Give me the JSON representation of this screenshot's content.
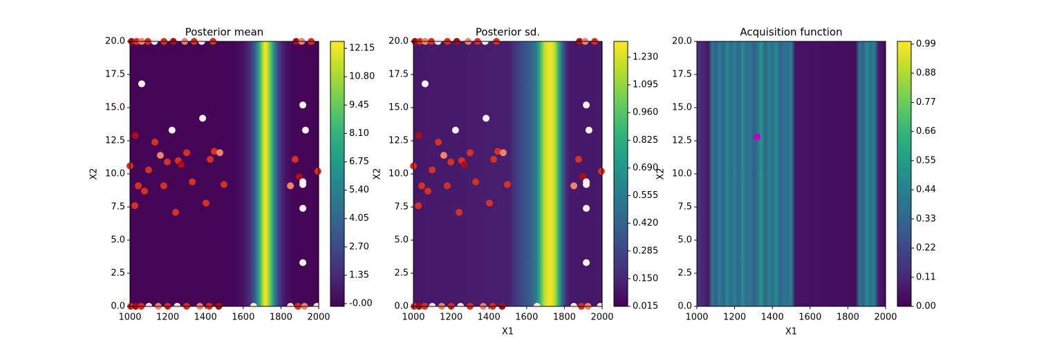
{
  "chart_data": [
    {
      "type": "heatmap",
      "title": "Posterior mean",
      "ylabel": "X2",
      "colormap": "viridis",
      "xlim": [
        1000,
        2000
      ],
      "ylim": [
        0,
        20
      ],
      "xticks": [
        1000,
        1200,
        1400,
        1600,
        1800,
        2000
      ],
      "yticks": [
        {
          "value": 0,
          "label": "0.0"
        },
        2.5,
        {
          "value": 5,
          "label": "5.0"
        },
        7.5,
        {
          "value": 10,
          "label": "10.0"
        },
        12.5,
        {
          "value": 15,
          "label": "15.0"
        },
        17.5,
        {
          "value": 20,
          "label": "20.0"
        }
      ],
      "x": [
        1000,
        1500,
        1560,
        1600,
        1630,
        1650,
        1670,
        1690,
        1705,
        1715,
        1725,
        1740,
        1760,
        1780,
        1800,
        1830,
        1870,
        2000
      ],
      "values": [
        0,
        0,
        0.1,
        0.5,
        1.3,
        2.6,
        5,
        8.5,
        11.3,
        12.4,
        11.8,
        9.8,
        6.4,
        3.2,
        1.3,
        0.4,
        0,
        0
      ],
      "clim": [
        -0.13,
        12.48
      ],
      "cticks": [
        {
          "value": 0,
          "label": "-0.00"
        },
        1.35,
        {
          "value": 2.7,
          "label": "2.70"
        },
        4.05,
        {
          "value": 5.4,
          "label": "5.40"
        },
        6.75,
        {
          "value": 8.1,
          "label": "8.10"
        },
        9.45,
        {
          "value": 10.8,
          "label": "10.80"
        },
        12.15
      ],
      "points": {
        "x": [
          1000,
          1029,
          1026,
          1044,
          1062,
          1077,
          1099,
          1132,
          1161,
          1179,
          1198,
          1223,
          1242,
          1256,
          1271,
          1300,
          1330,
          1385,
          1403,
          1425,
          1447,
          1476,
          1498,
          1850,
          1875,
          1897,
          1916,
          1916,
          1916,
          1916,
          1916,
          1930,
          1996,
          1008,
          1035,
          1062,
          1095,
          1130,
          1180,
          1230,
          1290,
          1340,
          1380,
          1440,
          1880,
          1910,
          1960,
          1004,
          1030,
          1060,
          1100,
          1150,
          1200,
          1250,
          1300,
          1370,
          1420,
          1470,
          1655,
          1850,
          1890,
          1925,
          1990
        ],
        "y": [
          10.6,
          12.9,
          7.6,
          9.1,
          16.8,
          8.7,
          10.3,
          12.4,
          11.4,
          9.1,
          10.9,
          13.3,
          7.1,
          11,
          10.7,
          11.6,
          9.4,
          14.2,
          7.8,
          11.1,
          11.7,
          11.6,
          9.2,
          9.1,
          11.1,
          9.8,
          15.2,
          9.4,
          9.2,
          7.4,
          3.3,
          13.3,
          10.2,
          20,
          20,
          20,
          20,
          20,
          20,
          20,
          20,
          20,
          20,
          20,
          20,
          20,
          20,
          0,
          0,
          0,
          0,
          0,
          0,
          0,
          0,
          0,
          0,
          0,
          0,
          0,
          0,
          0,
          0
        ],
        "colors": [
          "#d7301f",
          "#a50f15",
          "#d7301f",
          "#d7301f",
          "#fff0ec",
          "#d7301f",
          "#d7301f",
          "#d7301f",
          "#f4826a",
          "#d7301f",
          "#d7301f",
          "#fff0ec",
          "#d7301f",
          "#d7301f",
          "#a50f15",
          "#d7301f",
          "#d7301f",
          "#fff0ec",
          "#d7301f",
          "#d7301f",
          "#d7301f",
          "#f4826a",
          "#d7301f",
          "#f4826a",
          "#d7301f",
          "#a50f15",
          "#fff0ec",
          "#fff0ec",
          "#fff0ec",
          "#fff0ec",
          "#fff0ec",
          "#fff0ec",
          "#d7301f",
          "#a50f15",
          "#d7301f",
          "#f4826a",
          "#d7301f",
          "#fff0ec",
          "#d7301f",
          "#a50f15",
          "#f4826a",
          "#d7301f",
          "#fff0ec",
          "#d7301f",
          "#a50f15",
          "#f4826a",
          "#d7301f",
          "#d7301f",
          "#a50f15",
          "#d7301f",
          "#fff0ec",
          "#f4826a",
          "#d7301f",
          "#fff0ec",
          "#d7301f",
          "#f4826a",
          "#d7301f",
          "#a50f15",
          "#fff0ec",
          "#fff0ec",
          "#d7301f",
          "#f4826a",
          "#fff0ec"
        ]
      }
    },
    {
      "type": "heatmap",
      "title": "Posterior sd.",
      "xlabel": "X1",
      "ylabel": "X2",
      "colormap": "viridis",
      "xlim": [
        1000,
        2000
      ],
      "ylim": [
        0,
        20
      ],
      "xticks": [
        1000,
        1200,
        1400,
        1600,
        1800,
        2000
      ],
      "yticks": [
        {
          "value": 0,
          "label": "0.0"
        },
        2.5,
        {
          "value": 5,
          "label": "5.0"
        },
        7.5,
        {
          "value": 10,
          "label": "10.0"
        },
        12.5,
        {
          "value": 15,
          "label": "15.0"
        },
        17.5,
        {
          "value": 20,
          "label": "20.0"
        }
      ],
      "x": [
        1000,
        1500,
        1540,
        1580,
        1620,
        1650,
        1670,
        1690,
        1710,
        1730,
        1750,
        1770,
        1790,
        1810,
        1830,
        2000
      ],
      "values": [
        0.1,
        0.12,
        0.22,
        0.33,
        0.4,
        0.55,
        0.85,
        1.15,
        1.27,
        1.28,
        1.15,
        0.8,
        0.4,
        0.18,
        0.1,
        0.1
      ],
      "clim": [
        0.015,
        1.307
      ],
      "cticks": [
        0.015,
        {
          "value": 0.15,
          "label": "0.150"
        },
        0.285,
        {
          "value": 0.42,
          "label": "0.420"
        },
        0.555,
        {
          "value": 0.69,
          "label": "0.690"
        },
        0.825,
        {
          "value": 0.96,
          "label": "0.960"
        },
        1.095,
        {
          "value": 1.23,
          "label": "1.230"
        }
      ],
      "points": {
        "x": [
          1000,
          1029,
          1026,
          1044,
          1062,
          1077,
          1099,
          1132,
          1161,
          1179,
          1198,
          1223,
          1242,
          1256,
          1271,
          1300,
          1330,
          1385,
          1403,
          1425,
          1447,
          1476,
          1498,
          1850,
          1875,
          1897,
          1916,
          1916,
          1916,
          1916,
          1916,
          1930,
          1996,
          1008,
          1035,
          1062,
          1095,
          1130,
          1180,
          1230,
          1290,
          1340,
          1380,
          1440,
          1880,
          1910,
          1960,
          1004,
          1030,
          1060,
          1100,
          1150,
          1200,
          1250,
          1300,
          1370,
          1420,
          1470,
          1655,
          1850,
          1890,
          1925,
          1990
        ],
        "y": [
          10.6,
          12.9,
          7.6,
          9.1,
          16.8,
          8.7,
          10.3,
          12.4,
          11.4,
          9.1,
          10.9,
          13.3,
          7.1,
          11,
          10.7,
          11.6,
          9.4,
          14.2,
          7.8,
          11.1,
          11.7,
          11.6,
          9.2,
          9.1,
          11.1,
          9.8,
          15.2,
          9.4,
          9.2,
          7.4,
          3.3,
          13.3,
          10.2,
          20,
          20,
          20,
          20,
          20,
          20,
          20,
          20,
          20,
          20,
          20,
          20,
          20,
          20,
          0,
          0,
          0,
          0,
          0,
          0,
          0,
          0,
          0,
          0,
          0,
          0,
          0,
          0,
          0,
          0
        ],
        "colors": [
          "#d7301f",
          "#a50f15",
          "#d7301f",
          "#d7301f",
          "#fff0ec",
          "#d7301f",
          "#d7301f",
          "#d7301f",
          "#f4826a",
          "#d7301f",
          "#d7301f",
          "#fff0ec",
          "#d7301f",
          "#d7301f",
          "#a50f15",
          "#d7301f",
          "#d7301f",
          "#fff0ec",
          "#d7301f",
          "#d7301f",
          "#d7301f",
          "#f4826a",
          "#d7301f",
          "#f4826a",
          "#d7301f",
          "#a50f15",
          "#fff0ec",
          "#fff0ec",
          "#fff0ec",
          "#fff0ec",
          "#fff0ec",
          "#fff0ec",
          "#d7301f",
          "#a50f15",
          "#d7301f",
          "#f4826a",
          "#d7301f",
          "#fff0ec",
          "#d7301f",
          "#a50f15",
          "#f4826a",
          "#d7301f",
          "#fff0ec",
          "#d7301f",
          "#a50f15",
          "#f4826a",
          "#d7301f",
          "#d7301f",
          "#a50f15",
          "#d7301f",
          "#fff0ec",
          "#f4826a",
          "#d7301f",
          "#fff0ec",
          "#d7301f",
          "#f4826a",
          "#d7301f",
          "#a50f15",
          "#fff0ec",
          "#fff0ec",
          "#d7301f",
          "#f4826a",
          "#fff0ec"
        ]
      }
    },
    {
      "type": "heatmap",
      "title": "Acquisition function",
      "xlabel": "X1",
      "ylabel": "X2",
      "colormap": "viridis",
      "xlim": [
        1000,
        2000
      ],
      "ylim": [
        0,
        20
      ],
      "xticks": [
        1000,
        1200,
        1400,
        1600,
        1800,
        2000
      ],
      "yticks": [
        {
          "value": 0,
          "label": "0.0"
        },
        2.5,
        {
          "value": 5,
          "label": "5.0"
        },
        7.5,
        {
          "value": 10,
          "label": "10.0"
        },
        12.5,
        {
          "value": 15,
          "label": "15.0"
        },
        17.5,
        {
          "value": 20,
          "label": "20.0"
        }
      ],
      "x": [
        1000,
        1020,
        1040,
        1060,
        1080,
        1100,
        1120,
        1140,
        1160,
        1180,
        1200,
        1220,
        1240,
        1260,
        1280,
        1300,
        1320,
        1340,
        1360,
        1380,
        1400,
        1420,
        1440,
        1460,
        1480,
        1500,
        1520,
        1840,
        1860,
        1880,
        1900,
        1920,
        1940,
        1960,
        2000
      ],
      "values": [
        0.15,
        0.12,
        0.1,
        0.05,
        0.42,
        0.28,
        0.45,
        0.3,
        0.5,
        0.33,
        0.45,
        0.3,
        0.5,
        0.35,
        0.4,
        0.3,
        0.36,
        0.55,
        0.3,
        0.45,
        0.35,
        0.5,
        0.3,
        0.4,
        0.35,
        0.45,
        0.05,
        0.03,
        0.4,
        0.3,
        0.5,
        0.35,
        0.45,
        0.08,
        0.02
      ],
      "clim": [
        0,
        1
      ],
      "cticks": [
        {
          "value": 0,
          "label": "0.00"
        },
        0.11,
        0.22,
        0.33,
        0.44,
        0.55,
        0.66,
        0.77,
        0.88,
        0.99
      ],
      "points": {
        "x": [
          1320
        ],
        "y": [
          12.8
        ],
        "colors": [
          "#bf00bf"
        ]
      }
    }
  ]
}
